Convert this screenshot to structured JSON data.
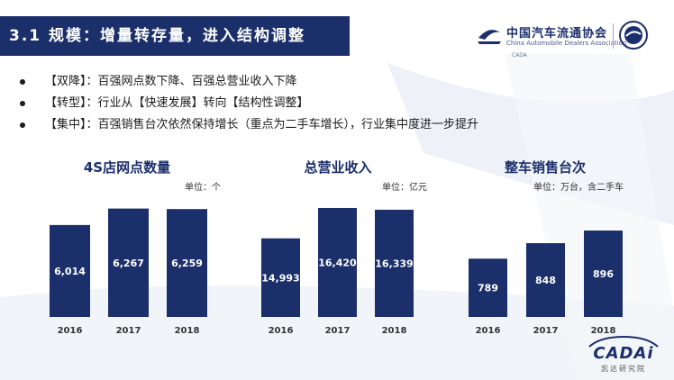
{
  "header": {
    "title": "3.1 规模：增量转存量，进入结构调整",
    "logo_cn": "中国汽车流通协会",
    "logo_en": "China Automobile Dealers Association",
    "logo_sub": "CADA"
  },
  "bullets": [
    "【双降】：百强网点数下降、百强总营业收入下降",
    "【转型】：行业从【快速发展】转向【结构性调整】",
    "【集中】：百强销售台次依然保持增长（重点为二手车增长），行业集中度进一步提升"
  ],
  "footer": {
    "brand": "CADAi",
    "brand_sub": "凯达研究院"
  },
  "chart_data": [
    {
      "type": "bar",
      "title": "4S店网点数量",
      "unit": "单位：个",
      "categories": [
        "2016",
        "2017",
        "2018"
      ],
      "values": [
        6014,
        6267,
        6259
      ],
      "labels": [
        "6,014",
        "6,267",
        "6,259"
      ],
      "ylim": [
        4600,
        6400
      ],
      "color": "#1b2f6b"
    },
    {
      "type": "bar",
      "title": "总营业收入",
      "unit": "单位：亿元",
      "categories": [
        "2016",
        "2017",
        "2018"
      ],
      "values": [
        14993,
        16420,
        16339
      ],
      "labels": [
        "14,993",
        "16,420",
        "16,339"
      ],
      "ylim": [
        11300,
        16800
      ],
      "color": "#1b2f6b"
    },
    {
      "type": "bar",
      "title": "整车销售台次",
      "unit": "单位：万台，含二手车",
      "categories": [
        "2016",
        "2017",
        "2018"
      ],
      "values": [
        789,
        848,
        896
      ],
      "labels": [
        "789",
        "848",
        "896"
      ],
      "ylim": [
        567,
        951
      ],
      "color": "#1b2f6b"
    }
  ]
}
